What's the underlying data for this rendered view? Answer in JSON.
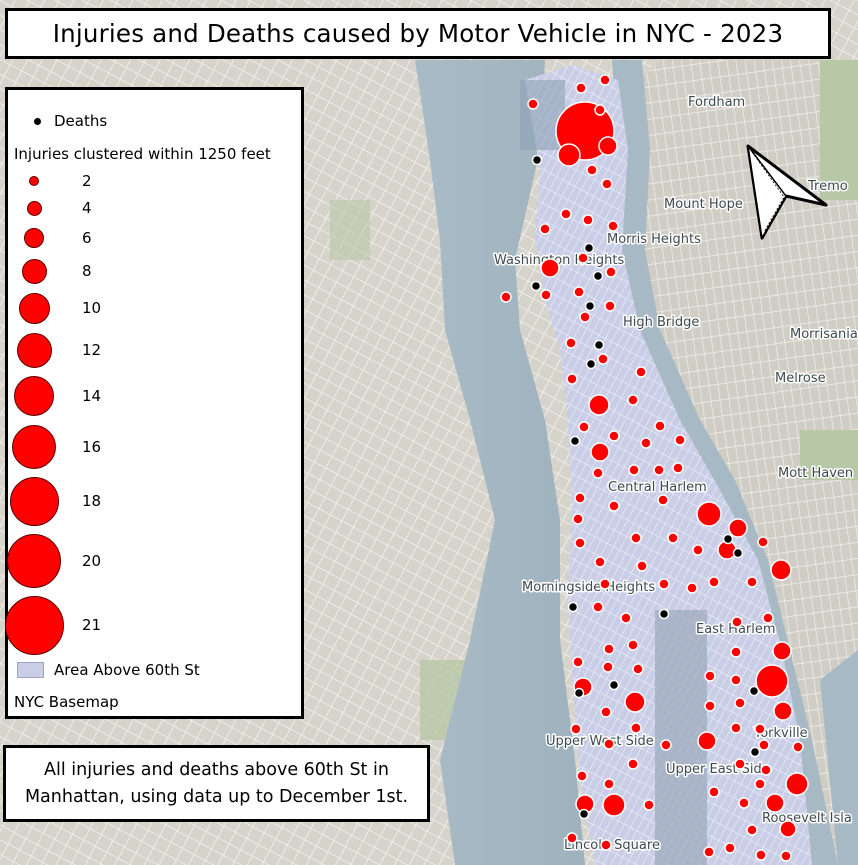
{
  "title": "Injuries and Deaths caused by Motor Vehicle in NYC - 2023",
  "legend": {
    "deaths_label": "Deaths",
    "injuries_header": "Injuries clustered within 1250 feet",
    "sizes": [
      "2",
      "4",
      "6",
      "8",
      "10",
      "12",
      "14",
      "16",
      "18",
      "20",
      "21"
    ],
    "area_label": "Area Above 60th St",
    "basemap_label": "NYC Basemap"
  },
  "note": {
    "line1": "All injuries and deaths above 60th St in",
    "line2": "Manhattan, using data up to December 1st."
  },
  "places": [
    "Fordham",
    "Mount Hope",
    "Tremo",
    "Morris Heights",
    "Washington Heights",
    "High Bridge",
    "Morrisania",
    "Melrose",
    "Mott Haven",
    "Central Harlem",
    "Morningside Heights",
    "East Harlem",
    "Yorkville",
    "Upper West Side",
    "Upper East Side",
    "Roosevelt Isla",
    "Lincoln Square"
  ],
  "colors": {
    "injury": "#ff0000",
    "death": "#000000",
    "area": "#c9cde6",
    "water": "#aebfca",
    "land": "#d3d0c7"
  },
  "icons": [
    "north-arrow-icon"
  ]
}
